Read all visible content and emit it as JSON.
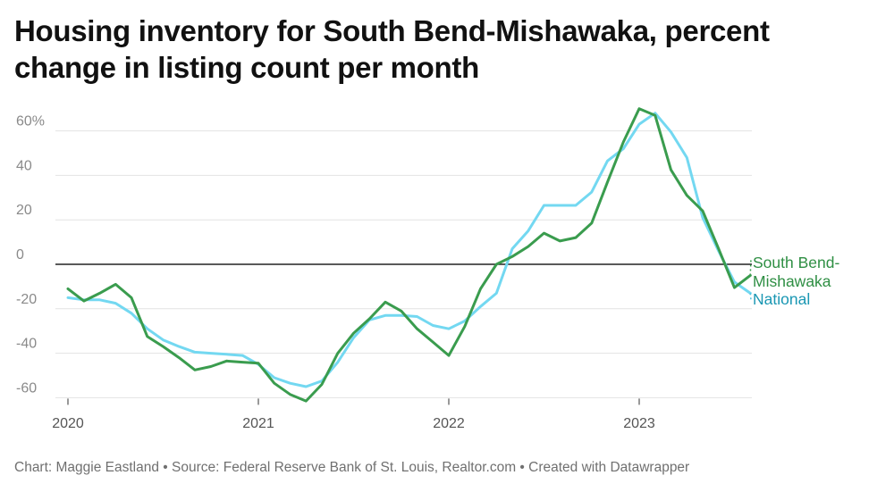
{
  "chart_data": {
    "type": "line",
    "title": "Housing inventory for South Bend-Mishawaka, percent change in listing count per month",
    "xlabel": "",
    "ylabel": "",
    "x_ticks": [
      "2020",
      "2021",
      "2022",
      "2023"
    ],
    "y_ticks": [
      {
        "value": 60,
        "label": "60%"
      },
      {
        "value": 40,
        "label": "40"
      },
      {
        "value": 20,
        "label": "20"
      },
      {
        "value": 0,
        "label": "0"
      },
      {
        "value": -20,
        "label": "-20"
      },
      {
        "value": -40,
        "label": "-40"
      },
      {
        "value": -60,
        "label": "-60"
      }
    ],
    "ylim": [
      -62,
      72
    ],
    "xlim": [
      0,
      44
    ],
    "x_unit": "months since January 2020",
    "series": [
      {
        "name": "South Bend-Mishawaka",
        "label_lines": [
          "South Bend-",
          "Mishawaka"
        ],
        "color": "#3a9c4e",
        "x": [
          0,
          1,
          2,
          3,
          4,
          5,
          6,
          7,
          8,
          9,
          10,
          11,
          12,
          13,
          14,
          15,
          16,
          17,
          18,
          19,
          20,
          21,
          22,
          23,
          24,
          25,
          26,
          27,
          28,
          29,
          30,
          31,
          32,
          33,
          34,
          35,
          36,
          37,
          38,
          39,
          40,
          41,
          42,
          43
        ],
        "values": [
          -11,
          -16.5,
          -13,
          -9,
          -15,
          -32.5,
          -37,
          -42,
          -47.5,
          -46,
          -43.5,
          -44,
          -44.5,
          -53.5,
          -58.5,
          -61.5,
          -54,
          -40,
          -31,
          -24.5,
          -17,
          -21,
          -29,
          -35,
          -41,
          -28,
          -11,
          0,
          3.5,
          8,
          14,
          10.5,
          12,
          18.5,
          37,
          55,
          70,
          67,
          42.5,
          31,
          24,
          7,
          -10.5,
          -5
        ]
      },
      {
        "name": "National",
        "label_lines": [
          "National"
        ],
        "color": "#73d8f1",
        "x": [
          0,
          1,
          2,
          3,
          4,
          5,
          6,
          7,
          8,
          9,
          10,
          11,
          12,
          13,
          14,
          15,
          16,
          17,
          18,
          19,
          20,
          21,
          22,
          23,
          24,
          25,
          26,
          27,
          28,
          29,
          30,
          31,
          32,
          33,
          34,
          35,
          36,
          37,
          38,
          39,
          40,
          41,
          42,
          43
        ],
        "values": [
          -15,
          -16,
          -16,
          -17.5,
          -22,
          -29,
          -34,
          -37,
          -39.5,
          -40,
          -40.5,
          -41,
          -45,
          -51,
          -53.5,
          -55,
          -52.5,
          -44,
          -33,
          -25,
          -23,
          -23,
          -23.5,
          -27.5,
          -29,
          -25.5,
          -19,
          -13,
          7,
          15,
          26.5,
          26.5,
          26.5,
          32.5,
          46.5,
          52,
          63,
          68,
          59.5,
          48,
          21,
          6,
          -8,
          -13
        ]
      }
    ]
  },
  "footer": {
    "text": "Chart: Maggie Eastland • Source: Federal Reserve Bank of St. Louis, Realtor.com • Created with Datawrapper"
  }
}
